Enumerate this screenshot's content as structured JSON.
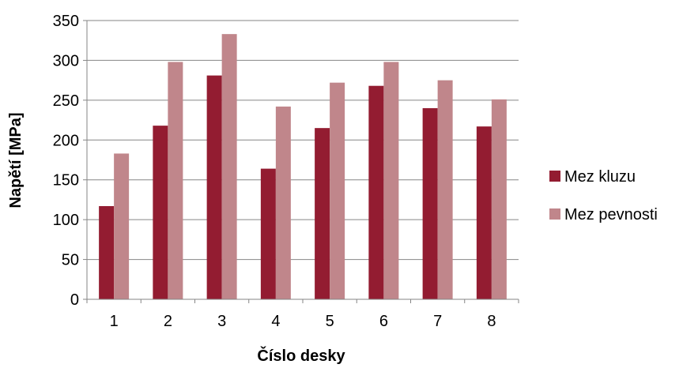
{
  "chart_data": {
    "type": "bar",
    "title": "",
    "xlabel": "Číslo desky",
    "ylabel": "Napětí [MPa]",
    "categories": [
      "1",
      "2",
      "3",
      "4",
      "5",
      "6",
      "7",
      "8"
    ],
    "ylim": [
      0,
      350
    ],
    "yticks": [
      0,
      50,
      100,
      150,
      200,
      250,
      300,
      350
    ],
    "grid": true,
    "legend_position": "right",
    "series": [
      {
        "name": "Mez kluzu",
        "color": "#931c31",
        "values": [
          117,
          218,
          281,
          164,
          215,
          268,
          240,
          217
        ]
      },
      {
        "name": "Mez pevnosti",
        "color": "#c0868b",
        "values": [
          183,
          298,
          333,
          242,
          272,
          298,
          275,
          251
        ]
      }
    ]
  }
}
